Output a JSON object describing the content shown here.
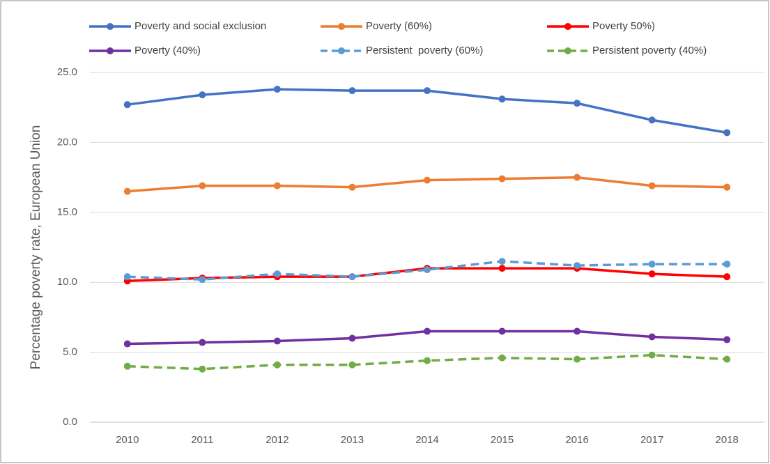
{
  "chart_data": {
    "type": "line",
    "ylabel": "Percentage poverty rate, European Union",
    "categories": [
      "2010",
      "2011",
      "2012",
      "2013",
      "2014",
      "2015",
      "2016",
      "2017",
      "2018"
    ],
    "ylim": [
      0,
      25
    ],
    "yticks": [
      {
        "value": 0,
        "label": "0.0"
      },
      {
        "value": 5,
        "label": "5.0"
      },
      {
        "value": 10,
        "label": "10.0"
      },
      {
        "value": 15,
        "label": "15.0"
      },
      {
        "value": 20,
        "label": "20.0"
      },
      {
        "value": 25,
        "label": "25.0"
      }
    ],
    "grid": true,
    "legend": "top",
    "series": [
      {
        "name": "Poverty and social exclusion",
        "color": "#4472c4",
        "dashed": false,
        "values": [
          22.7,
          23.4,
          23.8,
          23.7,
          23.7,
          23.1,
          22.8,
          21.6,
          20.7
        ]
      },
      {
        "name": "Poverty (60%)",
        "color": "#ed7d31",
        "dashed": false,
        "values": [
          16.5,
          16.9,
          16.9,
          16.8,
          17.3,
          17.4,
          17.5,
          16.9,
          16.8
        ]
      },
      {
        "name": "Poverty 50%)",
        "color": "#ff0000",
        "dashed": false,
        "values": [
          10.1,
          10.3,
          10.4,
          10.4,
          11.0,
          11.0,
          11.0,
          10.6,
          10.4
        ]
      },
      {
        "name": "Poverty (40%)",
        "color": "#7030a0",
        "dashed": false,
        "values": [
          5.6,
          5.7,
          5.8,
          6.0,
          6.5,
          6.5,
          6.5,
          6.1,
          5.9
        ]
      },
      {
        "name": "Persistent  poverty (60%)",
        "color": "#5b9bd5",
        "dashed": true,
        "values": [
          10.4,
          10.2,
          10.6,
          10.4,
          10.9,
          11.5,
          11.2,
          11.3,
          11.3
        ]
      },
      {
        "name": "Persistent poverty (40%)",
        "color": "#70ad47",
        "dashed": true,
        "values": [
          4.0,
          3.8,
          4.1,
          4.1,
          4.4,
          4.6,
          4.5,
          4.8,
          4.5
        ]
      }
    ]
  }
}
